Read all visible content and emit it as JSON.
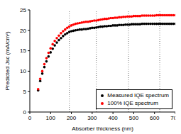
{
  "chart_data": {
    "type": "scatter",
    "x_label": "Absorber thickness (nm)",
    "y_label": "Predicted Jsc (mA/cm²)",
    "x": [
      40,
      50,
      60,
      70,
      80,
      90,
      100,
      110,
      120,
      130,
      140,
      150,
      160,
      170,
      180,
      190,
      200,
      210,
      220,
      230,
      240,
      250,
      260,
      270,
      280,
      290,
      300,
      310,
      320,
      330,
      340,
      350,
      360,
      370,
      380,
      390,
      400,
      410,
      420,
      430,
      440,
      450,
      460,
      470,
      480,
      490,
      500,
      510,
      520,
      530,
      540,
      550,
      560,
      570,
      580,
      590,
      600,
      610,
      620,
      630,
      640,
      650,
      660,
      670,
      680,
      690,
      700
    ],
    "series": [
      {
        "name": "Measured IQE spectrum",
        "color": "#000000",
        "marker": "circle",
        "values": [
          5.3,
          7.6,
          9.4,
          11.0,
          12.4,
          13.6,
          14.6,
          15.5,
          16.3,
          17.0,
          17.6,
          18.1,
          18.6,
          19.0,
          19.3,
          19.6,
          19.8,
          19.9,
          20.0,
          20.1,
          20.2,
          20.2,
          20.3,
          20.3,
          20.4,
          20.5,
          20.6,
          20.6,
          20.7,
          20.8,
          20.9,
          20.9,
          21.0,
          21.0,
          21.1,
          21.1,
          21.2,
          21.2,
          21.2,
          21.3,
          21.3,
          21.3,
          21.4,
          21.4,
          21.4,
          21.5,
          21.5,
          21.5,
          21.5,
          21.5,
          21.6,
          21.6,
          21.6,
          21.6,
          21.6,
          21.6,
          21.6,
          21.6,
          21.6,
          21.6,
          21.6,
          21.6,
          21.6,
          21.6,
          21.6,
          21.6,
          21.6
        ]
      },
      {
        "name": "100% IQE spectrum",
        "color": "#ff0000",
        "marker": "circle",
        "values": [
          5.6,
          8.1,
          10.0,
          11.7,
          13.2,
          14.5,
          15.6,
          16.6,
          17.4,
          18.1,
          18.7,
          19.3,
          19.8,
          20.2,
          20.6,
          20.9,
          21.2,
          21.4,
          21.6,
          21.7,
          21.8,
          21.9,
          22.0,
          22.1,
          22.1,
          22.2,
          22.3,
          22.4,
          22.4,
          22.5,
          22.6,
          22.7,
          22.8,
          22.8,
          22.9,
          23.0,
          23.0,
          23.1,
          23.1,
          23.2,
          23.2,
          23.3,
          23.3,
          23.4,
          23.4,
          23.4,
          23.5,
          23.5,
          23.5,
          23.5,
          23.6,
          23.6,
          23.6,
          23.6,
          23.6,
          23.6,
          23.6,
          23.7,
          23.7,
          23.7,
          23.7,
          23.7,
          23.7,
          23.7,
          23.7,
          23.7,
          23.7
        ]
      }
    ],
    "xlim": [
      0,
      700
    ],
    "xticks": [
      0,
      100,
      200,
      300,
      400,
      500,
      600,
      700
    ],
    "ylim": [
      0,
      25
    ],
    "yticks": [
      0,
      5,
      10,
      15,
      20,
      25
    ],
    "vlines": [
      190,
      320,
      475,
      625
    ],
    "legend": "lower right",
    "grid": false
  }
}
